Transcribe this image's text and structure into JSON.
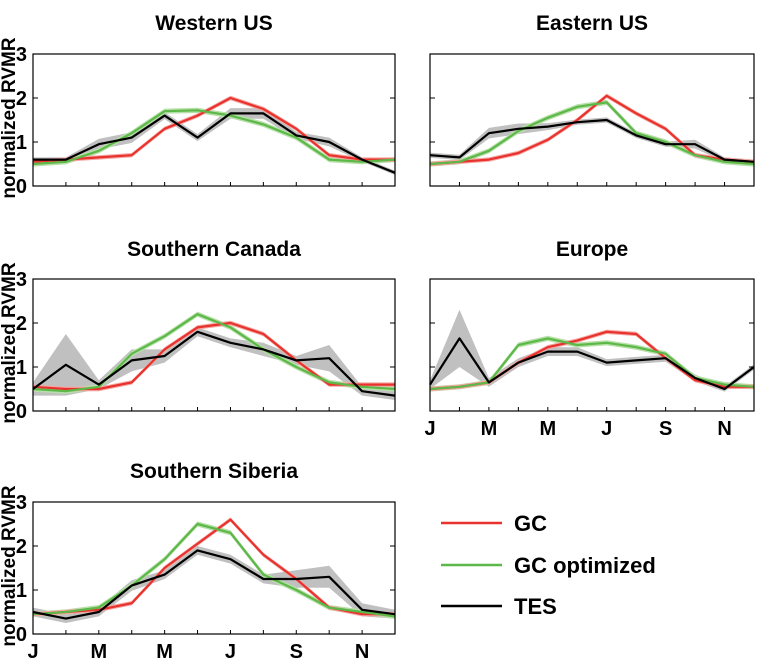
{
  "chart_data": {
    "type": "line",
    "ylabel": "normalized RVMR",
    "ylim": [
      0,
      3
    ],
    "yticks": [
      "0",
      "1",
      "2",
      "3"
    ],
    "month_labels": [
      "J",
      "M",
      "M",
      "J",
      "S",
      "N"
    ],
    "month_label_positions": [
      1,
      3,
      5,
      7,
      9,
      11
    ],
    "x_months": [
      1,
      2,
      3,
      4,
      5,
      6,
      7,
      8,
      9,
      10,
      11,
      12
    ],
    "legend": [
      {
        "name": "GC",
        "color": "#e8322d"
      },
      {
        "name": "GC optimized",
        "color": "#5cb848"
      },
      {
        "name": "TES",
        "color": "#000000"
      }
    ],
    "colors": {
      "gc": "#e8322d",
      "gc_band": "#f5a6a2",
      "opt": "#5cb848",
      "opt_band": "#b7e0a8",
      "tes": "#000000",
      "tes_band": "#c0c0c0"
    },
    "panels": [
      {
        "title": "Western US",
        "gc": [
          0.55,
          0.6,
          0.65,
          0.7,
          1.3,
          1.6,
          2.0,
          1.75,
          1.3,
          0.7,
          0.6,
          0.6
        ],
        "opt": [
          0.5,
          0.55,
          0.8,
          1.2,
          1.7,
          1.72,
          1.6,
          1.4,
          1.1,
          0.6,
          0.55,
          0.6
        ],
        "tes": [
          0.6,
          0.6,
          0.95,
          1.1,
          1.6,
          1.1,
          1.65,
          1.65,
          1.15,
          1.0,
          0.6,
          0.3
        ],
        "tes_spread": [
          0.05,
          0.05,
          0.12,
          0.12,
          0.08,
          0.08,
          0.12,
          0.12,
          0.08,
          0.1,
          0.05,
          0.05
        ]
      },
      {
        "title": "Eastern US",
        "gc": [
          0.5,
          0.55,
          0.6,
          0.75,
          1.05,
          1.5,
          2.05,
          1.65,
          1.3,
          0.7,
          0.6,
          0.55
        ],
        "opt": [
          0.5,
          0.55,
          0.8,
          1.25,
          1.55,
          1.8,
          1.9,
          1.2,
          1.0,
          0.7,
          0.55,
          0.5
        ],
        "tes": [
          0.7,
          0.65,
          1.2,
          1.3,
          1.35,
          1.45,
          1.5,
          1.15,
          0.95,
          0.95,
          0.6,
          0.55
        ],
        "tes_spread": [
          0.06,
          0.06,
          0.12,
          0.12,
          0.08,
          0.06,
          0.06,
          0.06,
          0.06,
          0.1,
          0.05,
          0.05
        ]
      },
      {
        "title": "Southern Canada",
        "gc": [
          0.55,
          0.5,
          0.5,
          0.65,
          1.4,
          1.9,
          2.0,
          1.75,
          1.15,
          0.6,
          0.6,
          0.6
        ],
        "opt": [
          0.5,
          0.45,
          0.55,
          1.3,
          1.7,
          2.2,
          1.9,
          1.4,
          1.0,
          0.65,
          0.55,
          0.5
        ],
        "tes": [
          0.5,
          1.05,
          0.6,
          1.15,
          1.25,
          1.8,
          1.55,
          1.4,
          1.15,
          1.2,
          0.45,
          0.35
        ],
        "tes_spread": [
          0.15,
          0.7,
          0.1,
          0.25,
          0.15,
          0.1,
          0.1,
          0.15,
          0.1,
          0.3,
          0.1,
          0.1
        ]
      },
      {
        "title": "Europe",
        "gc": [
          0.5,
          0.55,
          0.65,
          1.1,
          1.45,
          1.6,
          1.8,
          1.75,
          1.2,
          0.7,
          0.55,
          0.55
        ],
        "opt": [
          0.5,
          0.55,
          0.65,
          1.5,
          1.65,
          1.5,
          1.55,
          1.45,
          1.3,
          0.75,
          0.6,
          0.55
        ],
        "tes": [
          0.6,
          1.65,
          0.65,
          1.1,
          1.35,
          1.35,
          1.1,
          1.15,
          1.2,
          0.75,
          0.5,
          1.0
        ],
        "tes_spread": [
          0.1,
          0.65,
          0.1,
          0.1,
          0.1,
          0.1,
          0.08,
          0.08,
          0.08,
          0.08,
          0.06,
          0.06
        ]
      },
      {
        "title": "Southern Siberia",
        "gc": [
          0.45,
          0.5,
          0.55,
          0.7,
          1.5,
          2.05,
          2.6,
          1.8,
          1.25,
          0.6,
          0.45,
          0.45
        ],
        "opt": [
          0.45,
          0.5,
          0.6,
          1.1,
          1.7,
          2.5,
          2.3,
          1.35,
          1.0,
          0.6,
          0.5,
          0.4
        ],
        "tes": [
          0.5,
          0.35,
          0.5,
          1.1,
          1.35,
          1.9,
          1.7,
          1.25,
          1.25,
          1.3,
          0.55,
          0.45
        ],
        "tes_spread": [
          0.1,
          0.1,
          0.1,
          0.12,
          0.1,
          0.1,
          0.1,
          0.1,
          0.2,
          0.25,
          0.15,
          0.1
        ]
      }
    ]
  }
}
